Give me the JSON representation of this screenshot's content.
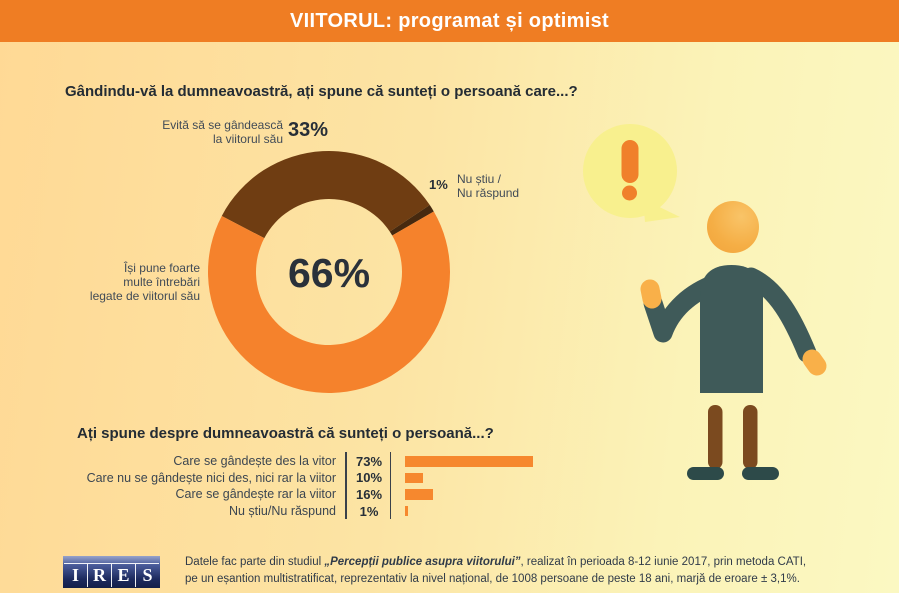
{
  "header": {
    "title": "VIITORUL: programat și optimist",
    "bg_color": "#ef7d23"
  },
  "questions": {
    "q1": "Gândindu-vă la dumneavoastră, ați spune că sunteți o persoană care...?",
    "q2": "Ați spune despre dumneavoastră că sunteți o persoană...?"
  },
  "chart_data": [
    {
      "type": "pie",
      "subtype": "donut",
      "title": "Gândindu-vă la dumneavoastră, ați spune că sunteți o persoană care...?",
      "start_angle_deg": -62.4,
      "center_label": "66%",
      "segments": [
        {
          "label": "Evită să se gândească la viitorul său",
          "label_lines": [
            "Evită să se gândească",
            "la viitorul său"
          ],
          "value": 33,
          "display": "33%",
          "color": "#6f3d12"
        },
        {
          "label": "Nu știu / Nu răspund",
          "label_lines": [
            "Nu știu /",
            "Nu răspund"
          ],
          "value": 1,
          "display": "1%",
          "color": "#46290f"
        },
        {
          "label": "Își pune foarte multe întrebări legate de viitorul său",
          "label_lines": [
            "Își pune foarte",
            "multe întrebări",
            "legate de viitorul său"
          ],
          "value": 66,
          "display": "66%",
          "color": "#f5822c"
        }
      ]
    },
    {
      "type": "bar",
      "orientation": "horizontal",
      "title": "Ați spune despre dumneavoastră că sunteți o persoană...?",
      "categories": [
        "Care se gândește des la vitor",
        "Care nu se gândește nici des, nici rar la viitor",
        "Care se gândește rar la viitor",
        "Nu știu/Nu răspund"
      ],
      "values": [
        73,
        10,
        16,
        1
      ],
      "displays": [
        "73%",
        "10%",
        "16%",
        "1%"
      ],
      "bar_color": "#f6882e",
      "xlim": [
        0,
        100
      ]
    }
  ],
  "illustration": {
    "speech_bubble_icon": "exclamation-icon",
    "person": "standing-person-gesturing"
  },
  "footer": {
    "logo": {
      "name": "IRES",
      "letters": [
        "I",
        "R",
        "E",
        "S"
      ]
    },
    "line1_prefix": "Datele fac parte din studiul ",
    "line1_study": "„Percepții publice asupra viitorului”",
    "line1_suffix": ", realizat în perioada 8-12 iunie 2017, prin metoda CATI,",
    "line2": "pe un eșantion multistratificat, reprezentativ la nivel național, de 1008 persoane de peste 18 ani, marjă de eroare ± 3,1%."
  },
  "colors": {
    "header_bg": "#ef7d23",
    "bg_left": "#ffd995",
    "bg_right": "#fbf8c2",
    "donut_orange": "#f5822c",
    "donut_brown": "#6f3d12",
    "donut_dark": "#46290f",
    "bar_orange": "#f6882e",
    "text_dark": "#242c34",
    "text_gray": "#3d4650",
    "logo_navy": "#1d2a5e",
    "bubble_yellow": "#f8f08e",
    "person_teal": "#3f5a59",
    "person_brown": "#7b4a1f",
    "skin_orange": "#f5ab41"
  }
}
